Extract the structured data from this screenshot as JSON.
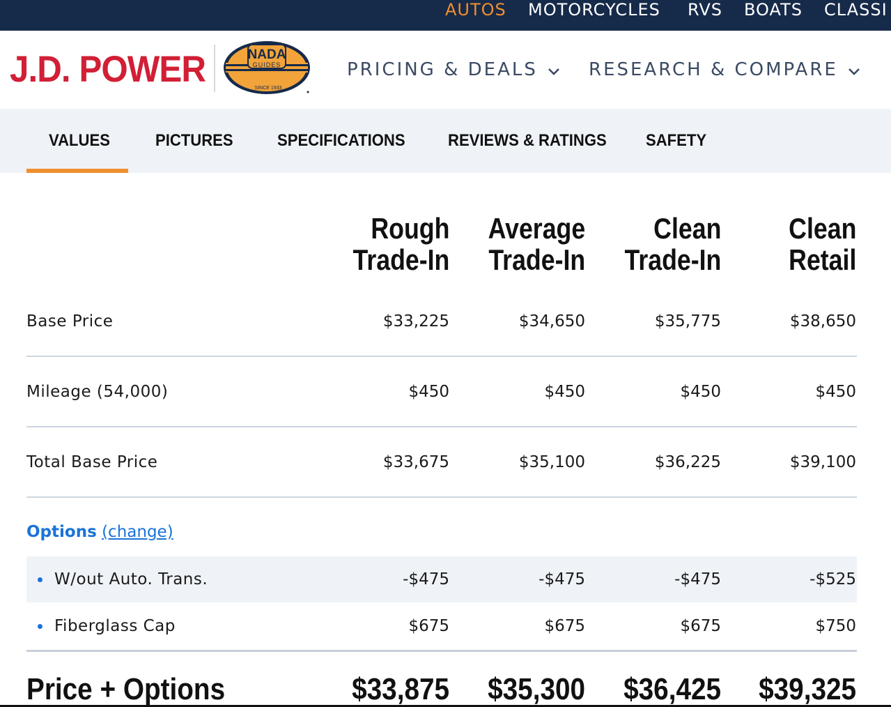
{
  "top_categories": [
    "AUTOS",
    "MOTORCYCLES",
    "RVS",
    "BOATS",
    "CLASSI"
  ],
  "active_category": "AUTOS",
  "brand": {
    "logo_text": "J.D. POWER",
    "nada_top": "NADA",
    "nada_middle": "GUIDES",
    "nada_bottom": "SINCE 1933"
  },
  "nav": [
    {
      "label": "PRICING & DEALS",
      "icon": "chevron-down-icon"
    },
    {
      "label": "RESEARCH & COMPARE",
      "icon": "chevron-down-icon"
    }
  ],
  "tabs": [
    "VALUES",
    "PICTURES",
    "SPECIFICATIONS",
    "REVIEWS & RATINGS",
    "SAFETY"
  ],
  "active_tab": "VALUES",
  "columns": [
    {
      "line1": "Rough",
      "line2": "Trade-In"
    },
    {
      "line1": "Average",
      "line2": "Trade-In"
    },
    {
      "line1": "Clean",
      "line2": "Trade-In"
    },
    {
      "line1": "Clean",
      "line2": "Retail"
    }
  ],
  "rows": [
    {
      "label": "Base Price",
      "values": [
        "$33,225",
        "$34,650",
        "$35,775",
        "$38,650"
      ]
    },
    {
      "label": "Mileage (54,000)",
      "values": [
        "$450",
        "$450",
        "$450",
        "$450"
      ]
    },
    {
      "label": "Total Base Price",
      "values": [
        "$33,675",
        "$35,100",
        "$36,225",
        "$39,100"
      ]
    }
  ],
  "options": {
    "title": "Options",
    "change_link": "(change)",
    "items": [
      {
        "label": "W/out Auto. Trans.",
        "values": [
          "-$475",
          "-$475",
          "-$475",
          "-$525"
        ]
      },
      {
        "label": "Fiberglass Cap",
        "values": [
          "$675",
          "$675",
          "$675",
          "$750"
        ]
      }
    ]
  },
  "total": {
    "label": "Price + Options",
    "values": [
      "$33,875",
      "$35,300",
      "$36,425",
      "$39,325"
    ]
  },
  "colors": {
    "topbar": "#162a4a",
    "accent_orange": "#f08f2e",
    "jd_red": "#d11f35",
    "link_blue": "#1a73d9",
    "tab_bg": "#eff3f7"
  }
}
